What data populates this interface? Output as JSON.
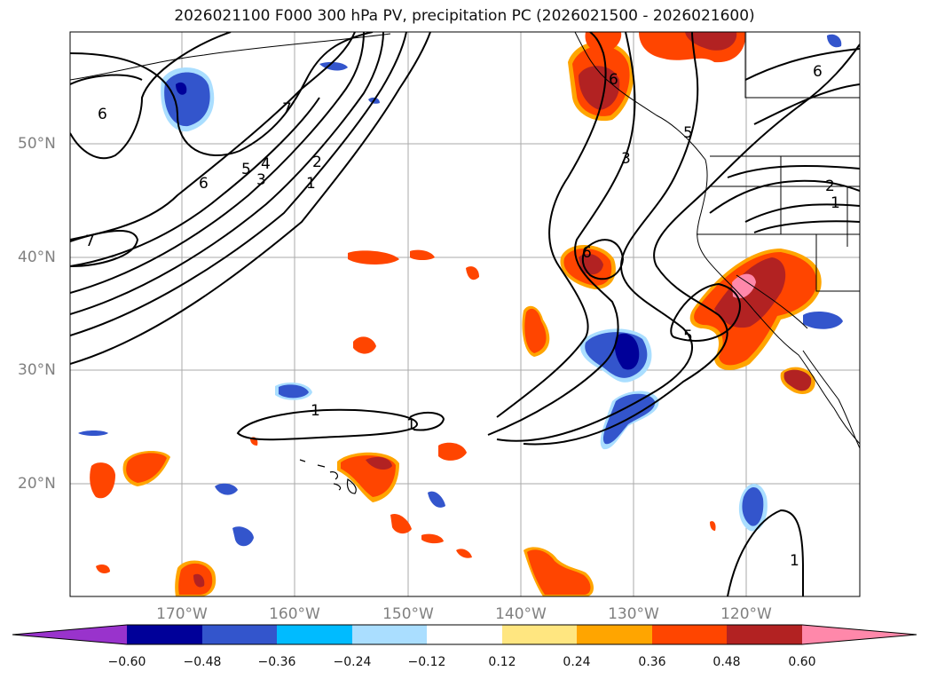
{
  "title": "2026021100 F000 300 hPa PV, precipitation PC (2026021500 - 2026021600)",
  "map": {
    "lat_labels": [
      "50°N",
      "40°N",
      "30°N",
      "20°N"
    ],
    "lon_labels": [
      "170°W",
      "160°W",
      "150°W",
      "140°W",
      "130°W",
      "120°W"
    ],
    "contour_labels": [
      "6",
      "7",
      "6",
      "5",
      "4",
      "3",
      "2",
      "1",
      "7",
      "6",
      "3",
      "5",
      "2",
      "1",
      "6",
      "5",
      "1",
      "1",
      "1",
      "6"
    ]
  },
  "colorbar": {
    "ticks": [
      "−0.60",
      "−0.48",
      "−0.36",
      "−0.24",
      "−0.12",
      "0.12",
      "0.24",
      "0.36",
      "0.48",
      "0.60"
    ],
    "colors": [
      "#9933cc",
      "#000099",
      "#3355cc",
      "#00bbff",
      "#aadeff",
      "#ffffff",
      "#ffe680",
      "#ffa500",
      "#ff4500",
      "#b22222",
      "#ff88aa"
    ]
  },
  "colors": {
    "grid": "#aaaaaa",
    "contour": "#000000",
    "coast": "#000000"
  }
}
